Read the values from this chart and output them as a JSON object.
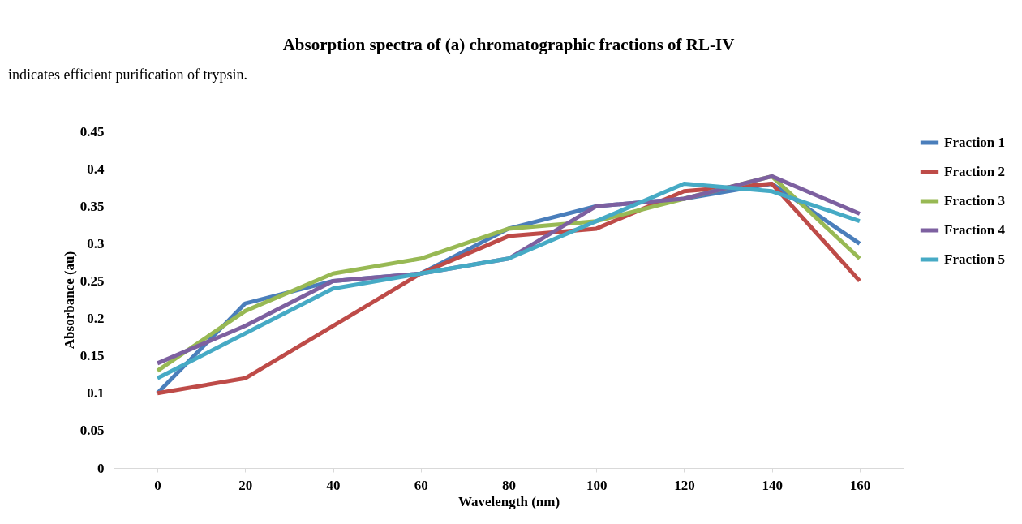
{
  "chart_data": {
    "type": "line",
    "title": "Absorption spectra of (a) chromatographic fractions of RL-IV",
    "xlabel": "Wavelength (nm)",
    "ylabel": "Absorbance (au)",
    "annotations": [
      "indicates efficient purification of trypsin."
    ],
    "categories": [
      "0",
      "20",
      "40",
      "60",
      "80",
      "100",
      "120",
      "140",
      "160"
    ],
    "series": [
      {
        "name": "Fraction 1",
        "color": "#4a7ebb",
        "values": [
          0.1,
          0.22,
          0.25,
          0.26,
          0.32,
          0.35,
          0.36,
          0.38,
          0.3
        ]
      },
      {
        "name": "Fraction 2",
        "color": "#be4b48",
        "values": [
          0.1,
          0.12,
          0.19,
          0.26,
          0.31,
          0.32,
          0.37,
          0.38,
          0.25
        ]
      },
      {
        "name": "Fraction 3",
        "color": "#98b954",
        "values": [
          0.13,
          0.21,
          0.26,
          0.28,
          0.32,
          0.33,
          0.36,
          0.39,
          0.28
        ]
      },
      {
        "name": "Fraction 4",
        "color": "#7d60a0",
        "values": [
          0.14,
          0.19,
          0.25,
          0.26,
          0.28,
          0.35,
          0.36,
          0.39,
          0.34
        ]
      },
      {
        "name": "Fraction 5",
        "color": "#46aac5",
        "values": [
          0.12,
          0.18,
          0.24,
          0.26,
          0.28,
          0.33,
          0.38,
          0.37,
          0.33
        ]
      }
    ],
    "ylim": [
      0,
      0.45
    ],
    "yticks": [
      0,
      0.05,
      0.1,
      0.15,
      0.2,
      0.25,
      0.3,
      0.35,
      0.4,
      0.45
    ],
    "grid": false,
    "legend": "right",
    "marker": "none",
    "line_style": "solid"
  }
}
